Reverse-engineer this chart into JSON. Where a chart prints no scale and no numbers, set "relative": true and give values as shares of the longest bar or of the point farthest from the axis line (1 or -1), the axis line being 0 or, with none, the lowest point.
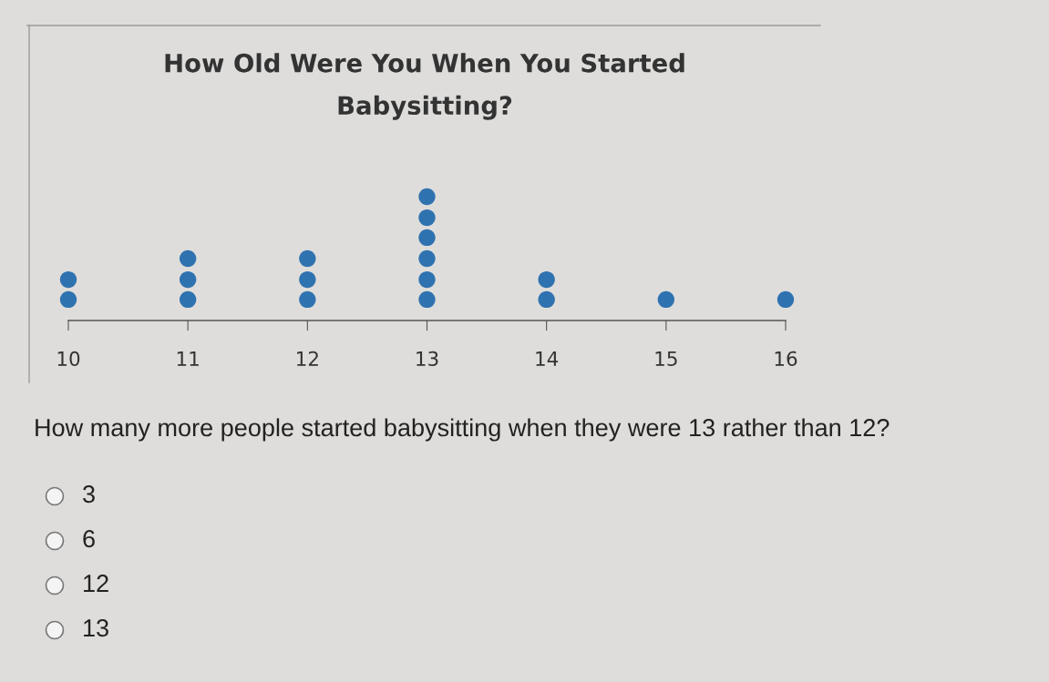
{
  "chart_data": {
    "type": "scatter",
    "title": "How Old Were You When You Started\nBabysitting?",
    "x": [
      10,
      10,
      11,
      11,
      11,
      12,
      12,
      12,
      13,
      13,
      13,
      13,
      13,
      13,
      14,
      14,
      15,
      16
    ],
    "series": [
      {
        "color": "#2f72b0",
        "values": [
          0.17,
          0.33,
          0.17,
          0.33,
          0.5,
          0.17,
          0.33,
          0.5,
          0.17,
          0.33,
          0.5,
          0.67,
          0.83,
          1,
          0.17,
          0.33,
          0.17,
          0.17
        ]
      }
    ],
    "relative": true,
    "marker": "circle",
    "xlim": [
      10,
      16
    ],
    "xticks": [
      10,
      11,
      12,
      13,
      14,
      15,
      16
    ],
    "grid": false,
    "annotations": [
      "How many more people started babysitting when they were 13 rather than 12?",
      "3",
      "6",
      "12",
      "13"
    ]
  }
}
